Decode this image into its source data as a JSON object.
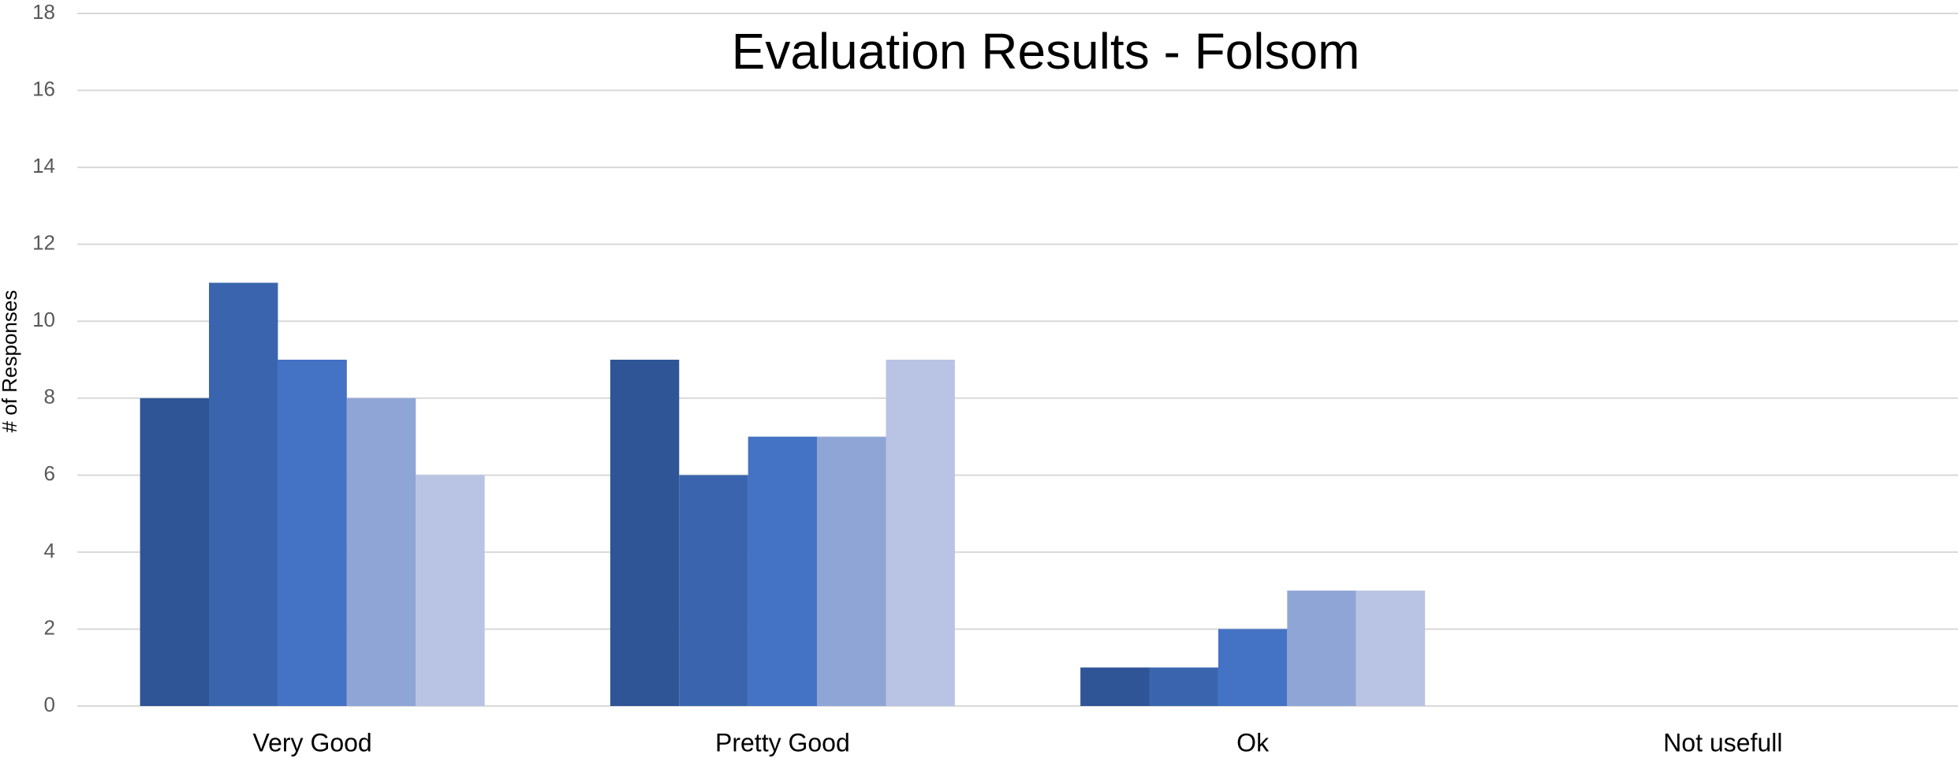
{
  "chart_data": {
    "type": "bar",
    "title": "Evaluation Results - Folsom",
    "y_label": "# of Responses",
    "categories": [
      "Very Good",
      "Pretty Good",
      "Ok",
      "Not usefull"
    ],
    "series": [
      {
        "color": "#2f5597",
        "values": [
          8,
          9,
          1,
          0
        ]
      },
      {
        "color": "#3a65ae",
        "values": [
          11,
          6,
          1,
          0
        ]
      },
      {
        "color": "#4472c4",
        "values": [
          9,
          7,
          2,
          0
        ]
      },
      {
        "color": "#8fa5d6",
        "values": [
          8,
          7,
          3,
          0
        ]
      },
      {
        "color": "#b9c3e3",
        "values": [
          6,
          9,
          3,
          0
        ]
      }
    ],
    "ylim": [
      0,
      18
    ],
    "yticks": [
      0,
      2,
      4,
      6,
      8,
      10,
      12,
      14,
      16,
      18
    ],
    "grid": true
  }
}
